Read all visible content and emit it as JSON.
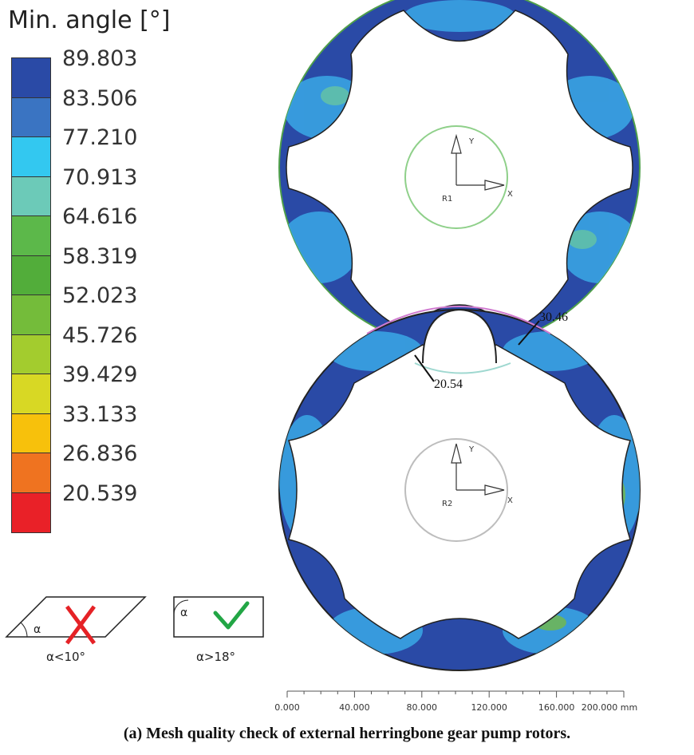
{
  "legend": {
    "title": "Min. angle [°]",
    "bands": [
      {
        "value": "89.803",
        "color": "#2a4aa6"
      },
      {
        "value": "83.506",
        "color": "#3a74c2"
      },
      {
        "value": "77.210",
        "color": "#33c8f0"
      },
      {
        "value": "70.913",
        "color": "#6ccab8"
      },
      {
        "value": "64.616",
        "color": "#5cb84a"
      },
      {
        "value": "58.319",
        "color": "#52ad3a"
      },
      {
        "value": "52.023",
        "color": "#74bc3a"
      },
      {
        "value": "45.726",
        "color": "#a3cc2e"
      },
      {
        "value": "39.429",
        "color": "#d8d824"
      },
      {
        "value": "33.133",
        "color": "#f7c10c"
      },
      {
        "value": "26.836",
        "color": "#ef7320"
      },
      {
        "value": "20.539",
        "color": "#e92128"
      }
    ]
  },
  "rotors": {
    "top_label": "R1",
    "bottom_label": "R2",
    "axis_x": "X",
    "axis_y": "Y"
  },
  "annotations": {
    "left_min": "20.54",
    "right_min": "30.46"
  },
  "scale_bar": {
    "ticks": [
      "0.000",
      "40.000",
      "80.000",
      "120.000",
      "160.000",
      "200.000 mm"
    ]
  },
  "quality_icons": {
    "bad_label": "α<10°",
    "good_label": "α>18°",
    "angle_symbol": "α"
  },
  "caption": "(a)  Mesh quality check of external herringbone gear pump rotors."
}
